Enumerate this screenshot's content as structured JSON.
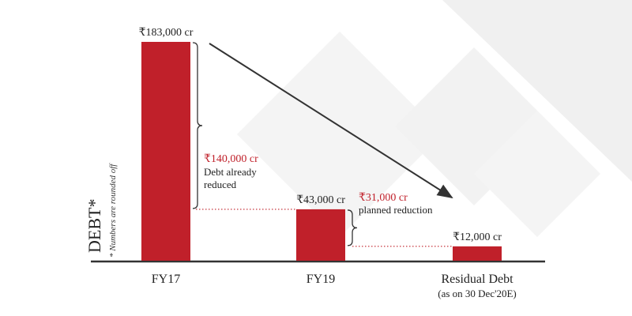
{
  "chart_data": {
    "type": "bar",
    "categories": [
      "FY17",
      "FY19",
      "Residual Debt"
    ],
    "category_sublabels": [
      "",
      "",
      "(as on 30 Dec'20E)"
    ],
    "values": [
      183000,
      43000,
      12000
    ],
    "value_labels": [
      "₹183,000 cr",
      "₹43,000 cr",
      "₹12,000 cr"
    ],
    "ylabel": "DEBT*",
    "footnote": "* Numbers are rounded off",
    "annotations": [
      {
        "value": "₹140,000 cr",
        "lines": [
          "Debt already",
          "reduced"
        ]
      },
      {
        "value": "₹31,000 cr",
        "lines": [
          "planned reduction"
        ]
      }
    ],
    "colors": {
      "bar": "#c0202a",
      "accent_text": "#c0202a",
      "axis": "#333333"
    },
    "ylim": [
      0,
      183000
    ]
  }
}
